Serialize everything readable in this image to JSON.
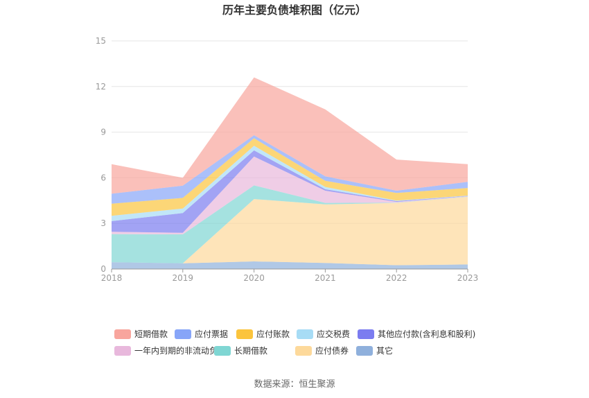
{
  "chart_data": {
    "type": "area",
    "stacked": true,
    "title": "历年主要负债堆积图（亿元）",
    "xlabel": "",
    "ylabel": "",
    "categories": [
      "2018",
      "2019",
      "2020",
      "2021",
      "2022",
      "2023"
    ],
    "ylim": [
      0,
      15
    ],
    "yticks": [
      "0",
      "3",
      "6",
      "9",
      "12",
      "15"
    ],
    "grid": true,
    "legend_position": "bottom",
    "series": [
      {
        "name": "其它",
        "color": "#8fb0dc",
        "values": [
          0.45,
          0.38,
          0.5,
          0.4,
          0.25,
          0.3
        ]
      },
      {
        "name": "应付债券",
        "color": "#fdd99b",
        "values": [
          0.0,
          0.0,
          4.1,
          3.85,
          4.1,
          4.45
        ]
      },
      {
        "name": "长期借款",
        "color": "#7fd6d3",
        "values": [
          1.85,
          1.9,
          0.9,
          0.1,
          0.02,
          0.02
        ]
      },
      {
        "name": "一年内到期的非流动负债",
        "color": "#e8b8dc",
        "values": [
          0.15,
          0.1,
          1.9,
          0.8,
          0.05,
          0.02
        ]
      },
      {
        "name": "其他应付款(含利息和股利)",
        "color": "#7b7cf0",
        "values": [
          0.7,
          1.3,
          0.4,
          0.1,
          0.05,
          0.02
        ]
      },
      {
        "name": "应交税费",
        "color": "#a7dcf5",
        "values": [
          0.35,
          0.3,
          0.3,
          0.15,
          0.03,
          0.02
        ]
      },
      {
        "name": "应付账款",
        "color": "#fbc43d",
        "values": [
          0.8,
          0.7,
          0.5,
          0.4,
          0.5,
          0.5
        ]
      },
      {
        "name": "应付票据",
        "color": "#87a5f8",
        "values": [
          0.65,
          0.8,
          0.2,
          0.3,
          0.15,
          0.4
        ]
      },
      {
        "name": "短期借款",
        "color": "#f8a59d",
        "values": [
          1.95,
          0.52,
          3.8,
          4.4,
          2.05,
          1.17
        ]
      }
    ],
    "legend_order": [
      "短期借款",
      "应付票据",
      "应付账款",
      "应交税费",
      "其他应付款(含利息和股利)",
      "一年内到期的非流动负债",
      "长期借款",
      "应付债券",
      "其它"
    ],
    "source": "数据来源：恒生聚源"
  }
}
